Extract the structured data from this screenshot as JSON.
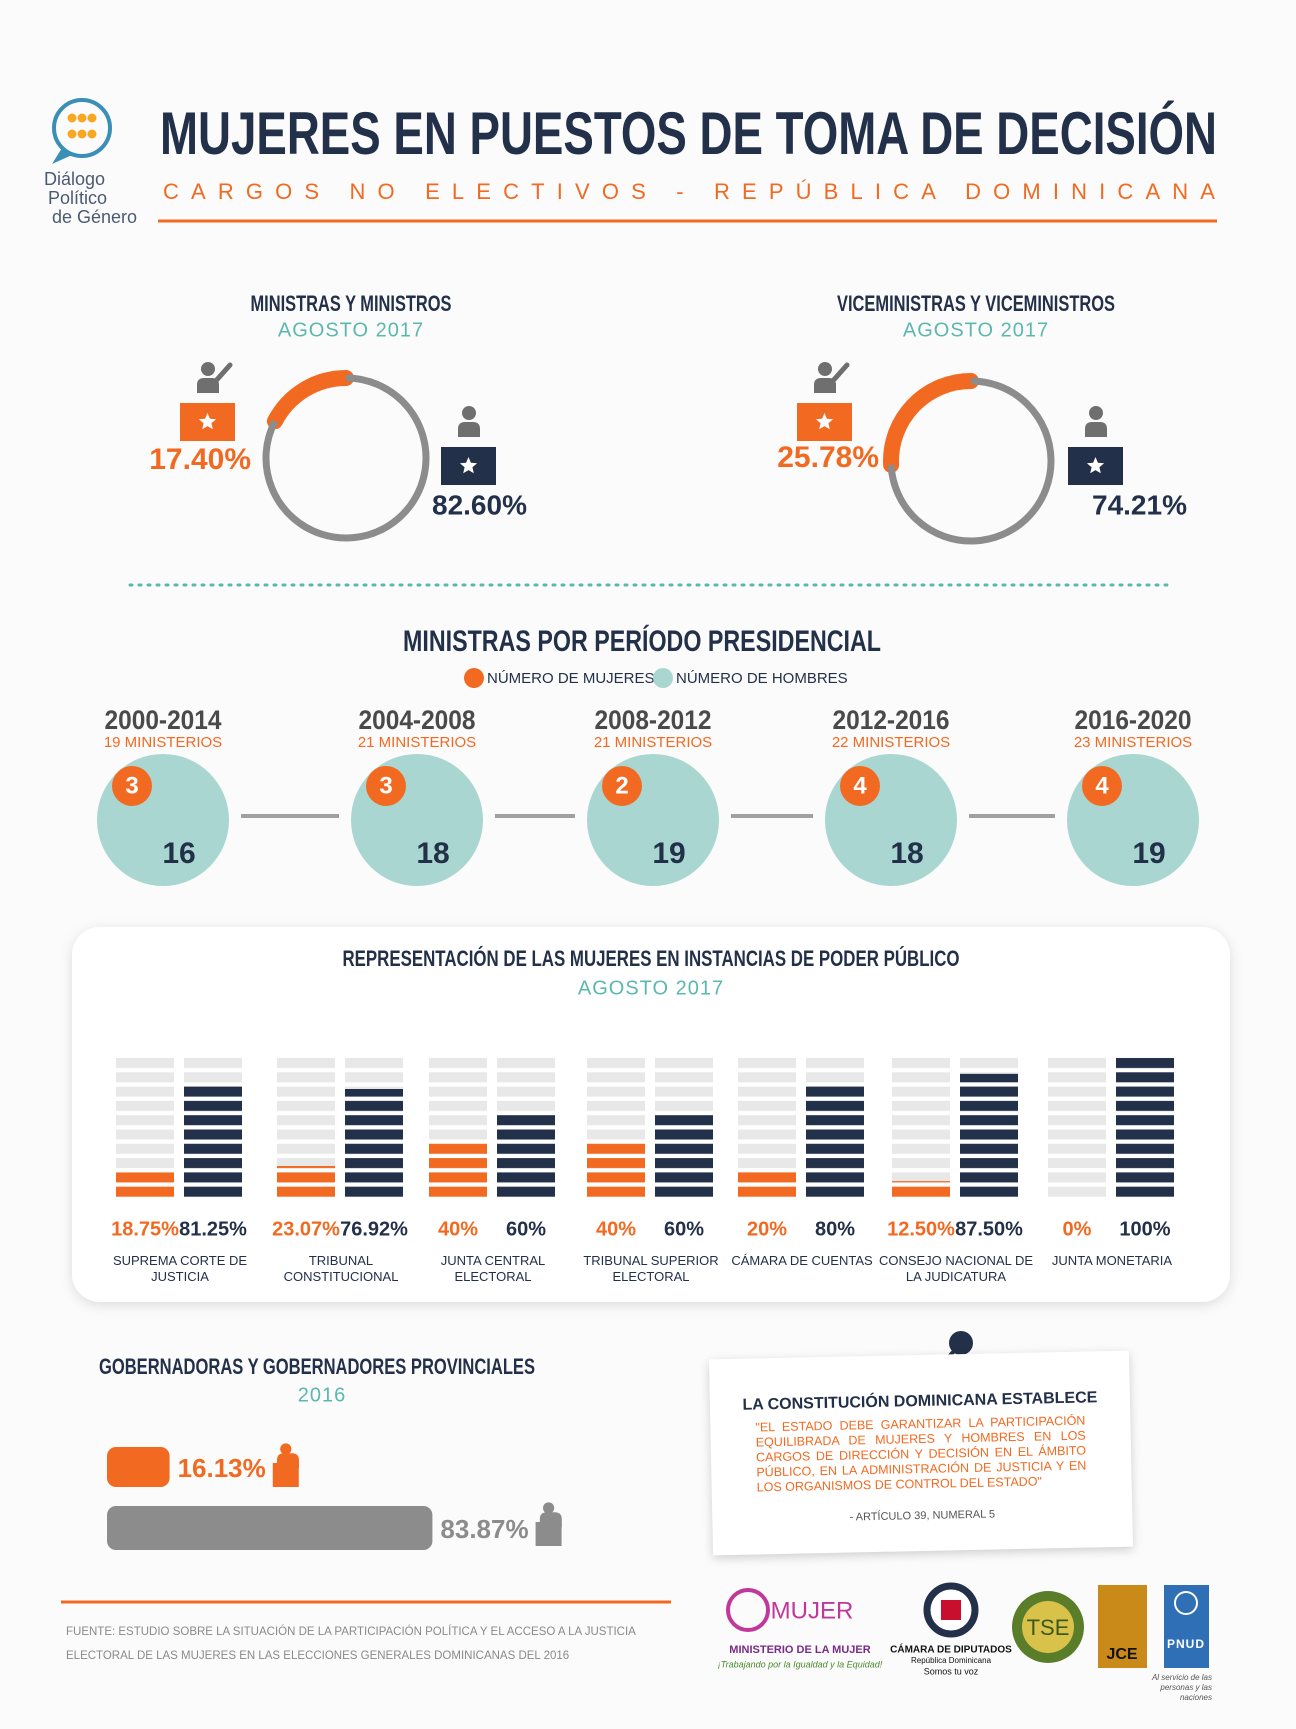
{
  "header": {
    "logo_text": [
      "Diálogo",
      "Político",
      "de Género"
    ],
    "title": "MUJERES EN PUESTOS DE TOMA DE DECISIÓN",
    "subtitle": "CARGOS NO ELECTIVOS - REPÚBLICA DOMINICANA"
  },
  "chart_data": [
    {
      "type": "donut",
      "title": "MINISTRAS Y MINISTROS",
      "subtitle": "AGOSTO 2017",
      "values": [
        17.4,
        82.6
      ],
      "value_labels": [
        "17.40%",
        "82.60%"
      ],
      "colors": [
        "#f26a21",
        "#8c8c8c"
      ]
    },
    {
      "type": "donut",
      "title": "VICEMINISTRAS Y VICEMINISTROS",
      "subtitle": "AGOSTO 2017",
      "values": [
        25.78,
        74.21
      ],
      "value_labels": [
        "25.78%",
        "74.21%"
      ],
      "colors": [
        "#f26a21",
        "#8c8c8c"
      ]
    },
    {
      "type": "circles",
      "title": "MINISTRAS POR PERÍODO PRESIDENCIAL",
      "categories": [
        "2000-2014",
        "2004-2008",
        "2008-2012",
        "2012-2016",
        "2016-2020"
      ],
      "category_subtitles": [
        "19 MINISTERIOS",
        "21 MINISTERIOS",
        "21 MINISTERIOS",
        "22 MINISTERIOS",
        "23 MINISTERIOS"
      ],
      "series": [
        {
          "name": "NÚMERO DE MUJERES",
          "color": "#f26a21",
          "values": [
            3,
            3,
            2,
            4,
            4
          ]
        },
        {
          "name": "NÚMERO DE HOMBRES",
          "color": "#a9d6d0",
          "values": [
            16,
            18,
            19,
            18,
            19
          ]
        }
      ]
    },
    {
      "type": "stacked-bar",
      "title": "REPRESENTACIÓN DE LAS MUJERES EN INSTANCIAS DE PODER PÚBLICO",
      "subtitle": "AGOSTO 2017",
      "categories": [
        "SUPREMA CORTE DE JUSTICIA",
        "TRIBUNAL CONSTITUCIONAL",
        "JUNTA CENTRAL ELECTORAL",
        "TRIBUNAL SUPERIOR ELECTORAL",
        "CÁMARA DE CUENTAS",
        "CONSEJO NACIONAL DE LA JUDICATURA",
        "JUNTA MONETARIA"
      ],
      "ylim": [
        0,
        100
      ],
      "series": [
        {
          "color": "#f26a21",
          "values": [
            18.75,
            23.07,
            40,
            40,
            20,
            12.5,
            0
          ],
          "value_labels": [
            "18.75%",
            "23.07%",
            "40%",
            "40%",
            "20%",
            "12.50%",
            "0%"
          ]
        },
        {
          "color": "#233049",
          "values": [
            81.25,
            76.92,
            60,
            60,
            80,
            87.5,
            100
          ],
          "value_labels": [
            "81.25%",
            "76.92%",
            "60%",
            "60%",
            "80%",
            "87.50%",
            "100%"
          ]
        }
      ]
    },
    {
      "type": "hbar",
      "title": "GOBERNADORAS Y GOBERNADORES PROVINCIALES",
      "subtitle": "2016",
      "xlim": [
        0,
        100
      ],
      "values": [
        16.13,
        83.87
      ],
      "value_labels": [
        "16.13%",
        "83.87%"
      ],
      "colors": [
        "#f26a21",
        "#8c8c8c"
      ]
    }
  ],
  "quote": {
    "title": "LA CONSTITUCIÓN DOMINICANA ESTABLECE",
    "text": "\"EL ESTADO DEBE GARANTIZAR LA PARTICIPACIÓN EQUILIBRADA DE MUJERES Y HOMBRES EN LOS CARGOS DE DIRECCIÓN Y DECISIÓN EN EL ÁMBITO PÚBLICO, EN LA ADMINISTRACIÓN DE JUSTICIA Y EN LOS ORGANISMOS DE CONTROL DEL ESTADO\"",
    "source": "- ARTÍCULO 39, NUMERAL 5"
  },
  "footer": {
    "source": "FUENTE: ESTUDIO SOBRE LA SITUACIÓN DE LA PARTICIPACIÓN POLÍTICA Y EL ACCESO A LA JUSTICIA ELECTORAL DE LAS MUJERES EN LAS ELECCIONES GENERALES DOMINICANAS DEL 2016",
    "logos": {
      "mujer": "MUJER",
      "ministerio": "MINISTERIO DE LA MUJER",
      "lema": "¡Trabajando por la Igualdad y la Equidad!",
      "camara": "CÁMARA DE DIPUTADOS",
      "camara_sub": "República Dominicana",
      "camara_lema": "Somos tu voz",
      "tse": "TSE",
      "jce": "JCE",
      "pnud": "PNUD",
      "pnud_lema": "Al servicio de las personas y las naciones"
    }
  }
}
